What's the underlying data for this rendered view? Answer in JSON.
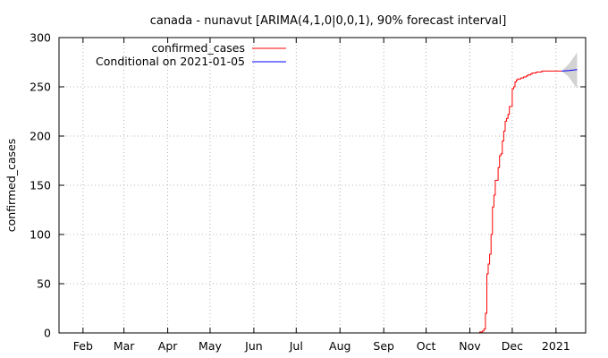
{
  "chart_data": {
    "type": "line",
    "title": "canada - nunavut [ARIMA(4,1,0|0,0,1), 90% forecast interval]",
    "xlabel": "",
    "ylabel": "confirmed_cases",
    "ylim": [
      0,
      300
    ],
    "xlim": [
      "2020-01-15",
      "2021-01-22"
    ],
    "yticks": [
      0,
      50,
      100,
      150,
      200,
      250,
      300
    ],
    "xticks": [
      {
        "label": "Feb",
        "date": "2020-02-01"
      },
      {
        "label": "Mar",
        "date": "2020-03-01"
      },
      {
        "label": "Apr",
        "date": "2020-04-01"
      },
      {
        "label": "May",
        "date": "2020-05-01"
      },
      {
        "label": "Jun",
        "date": "2020-06-01"
      },
      {
        "label": "Jul",
        "date": "2020-07-01"
      },
      {
        "label": "Aug",
        "date": "2020-08-01"
      },
      {
        "label": "Sep",
        "date": "2020-09-01"
      },
      {
        "label": "Oct",
        "date": "2020-10-01"
      },
      {
        "label": "Nov",
        "date": "2020-11-01"
      },
      {
        "label": "Dec",
        "date": "2020-12-01"
      },
      {
        "label": "2021",
        "date": "2021-01-01"
      }
    ],
    "grid": true,
    "legend_position": "top-left",
    "series": [
      {
        "name": "confirmed_cases",
        "color": "#ff0000",
        "x": [
          "2020-11-06",
          "2020-11-08",
          "2020-11-10",
          "2020-11-11",
          "2020-11-12",
          "2020-11-13",
          "2020-11-14",
          "2020-11-15",
          "2020-11-16",
          "2020-11-17",
          "2020-11-18",
          "2020-11-19",
          "2020-11-20",
          "2020-11-21",
          "2020-11-22",
          "2020-11-23",
          "2020-11-24",
          "2020-11-25",
          "2020-11-26",
          "2020-11-27",
          "2020-11-28",
          "2020-11-29",
          "2020-11-30",
          "2020-12-01",
          "2020-12-02",
          "2020-12-03",
          "2020-12-04",
          "2020-12-05",
          "2020-12-06",
          "2020-12-07",
          "2020-12-08",
          "2020-12-09",
          "2020-12-10",
          "2020-12-11",
          "2020-12-12",
          "2020-12-13",
          "2020-12-14",
          "2020-12-15",
          "2020-12-16",
          "2020-12-18",
          "2020-12-20",
          "2020-12-22",
          "2020-12-24",
          "2020-12-26",
          "2020-12-28",
          "2020-12-31",
          "2021-01-03",
          "2021-01-05"
        ],
        "values": [
          0,
          1,
          2,
          4,
          20,
          60,
          70,
          80,
          100,
          128,
          140,
          155,
          155,
          168,
          180,
          182,
          195,
          205,
          215,
          218,
          222,
          230,
          230,
          248,
          250,
          255,
          257,
          258,
          258,
          259,
          259,
          260,
          260,
          261,
          262,
          262,
          263,
          264,
          264,
          265,
          265,
          266,
          266,
          266,
          266,
          266,
          266,
          266
        ]
      },
      {
        "name": "Conditional on 2021-01-05",
        "color": "#0000ff",
        "x": [
          "2021-01-05",
          "2021-01-10",
          "2021-01-16"
        ],
        "values": [
          266,
          266.5,
          267.5
        ]
      }
    ],
    "forecast_interval": {
      "level": "90%",
      "color": "#d3d3d3",
      "x": [
        "2021-01-05",
        "2021-01-10",
        "2021-01-16"
      ],
      "lower": [
        266,
        260,
        248
      ],
      "upper": [
        266,
        273,
        285
      ]
    }
  }
}
